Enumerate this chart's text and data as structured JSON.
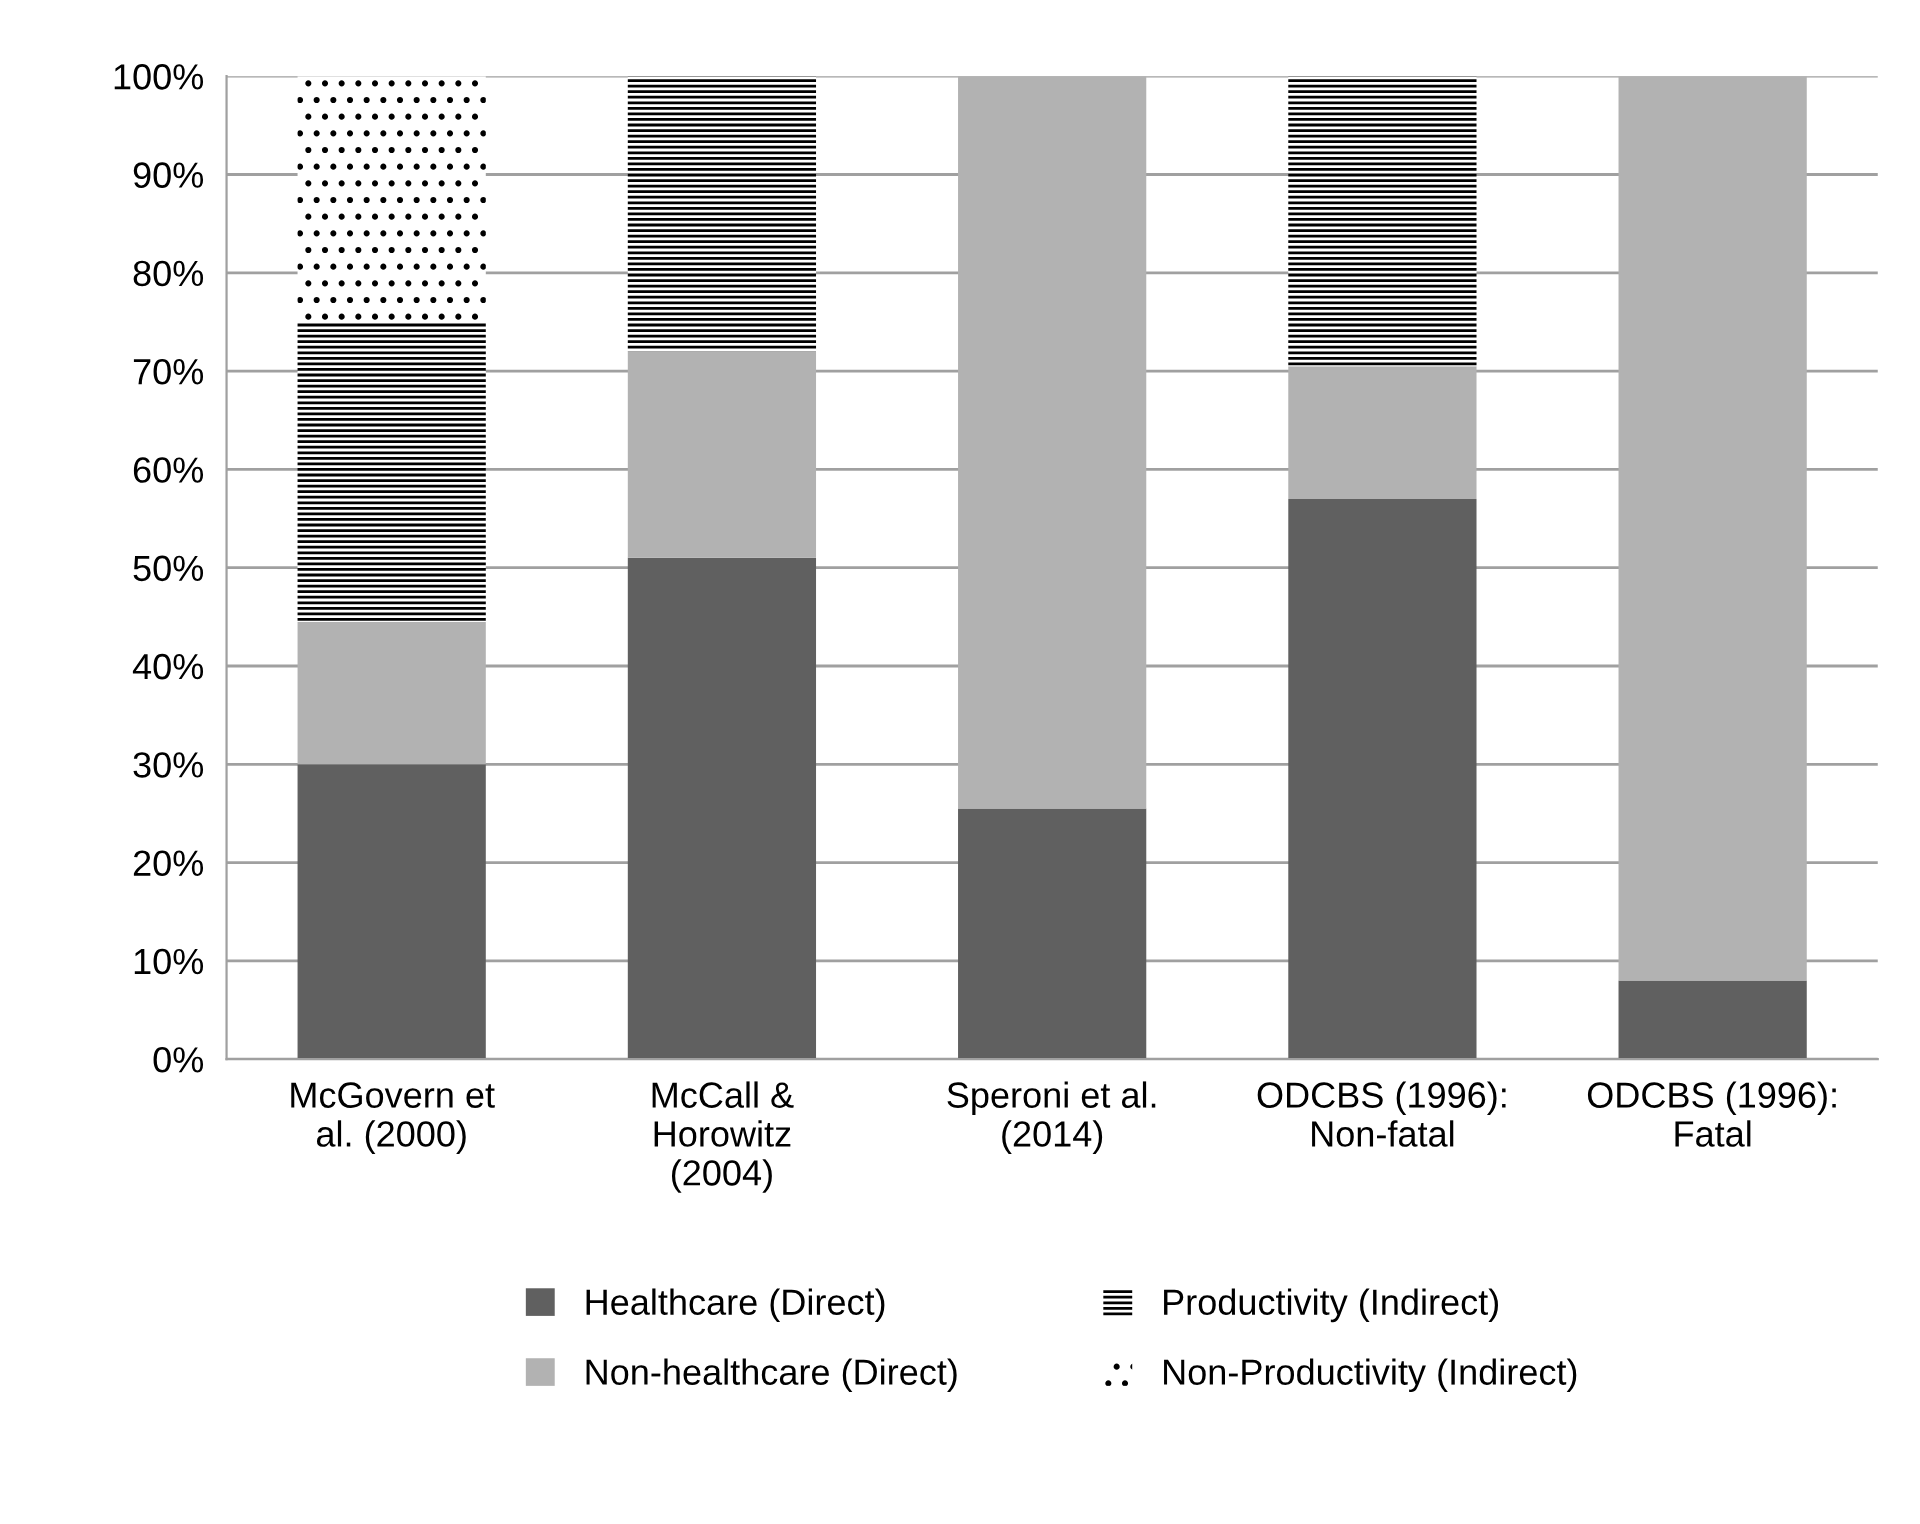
{
  "chart_data": {
    "type": "bar",
    "stacked": true,
    "categories": [
      "McGovern et\nal. (2000)",
      "McCall &\nHorowitz\n(2004)",
      "Speroni et al.\n(2014)",
      "ODCBS (1996):\nNon-fatal",
      "ODCBS (1996):\nFatal"
    ],
    "series": [
      {
        "name": "Healthcare (Direct)",
        "color": "#606060",
        "values": [
          30,
          51,
          25.5,
          57,
          8
        ]
      },
      {
        "name": "Non-healthcare (Direct)",
        "color": "#b2b2b2",
        "values": [
          14.5,
          21,
          74.5,
          13.5,
          92
        ]
      },
      {
        "name": "Productivity (Indirect)",
        "color": "#000000",
        "values": [
          30.5,
          28,
          null,
          29.5,
          null
        ]
      },
      {
        "name": "Non-Productivity (Indirect)",
        "color": "#000000",
        "values": [
          25,
          null,
          null,
          null,
          null
        ]
      }
    ],
    "ylim": [
      0,
      100
    ],
    "yticks": [
      {
        "value": 0,
        "label": "0%"
      },
      {
        "value": 10,
        "label": "10%"
      },
      {
        "value": 20,
        "label": "20%"
      },
      {
        "value": 30,
        "label": "30%"
      },
      {
        "value": 40,
        "label": "40%"
      },
      {
        "value": 50,
        "label": "50%"
      },
      {
        "value": 60,
        "label": "60%"
      },
      {
        "value": 70,
        "label": "70%"
      },
      {
        "value": 80,
        "label": "80%"
      },
      {
        "value": 90,
        "label": "90%"
      },
      {
        "value": 100,
        "label": "100%"
      }
    ],
    "grid": "y",
    "legend": "bottom"
  }
}
